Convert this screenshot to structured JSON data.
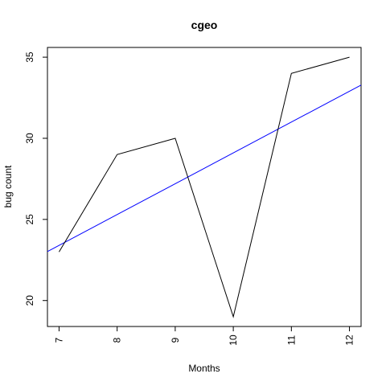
{
  "chart_data": {
    "type": "line",
    "title": "cgeo",
    "xlabel": "Months",
    "ylabel": "bug count",
    "x": [
      7,
      8,
      9,
      10,
      11,
      12
    ],
    "series": [
      {
        "values": [
          23,
          29,
          30,
          19,
          34,
          35
        ],
        "color": "#000000"
      }
    ],
    "trendline": {
      "type": "linear",
      "color": "#0000ff",
      "slope": 1.9,
      "intercept": 10.1
    },
    "xlim": [
      6.8,
      12.2
    ],
    "ylim": [
      18.4,
      35.6
    ],
    "xticks": [
      "7",
      "8",
      "9",
      "10",
      "11",
      "12"
    ],
    "yticks": [
      "20",
      "25",
      "30",
      "35"
    ],
    "grid": false,
    "legend": "none"
  }
}
